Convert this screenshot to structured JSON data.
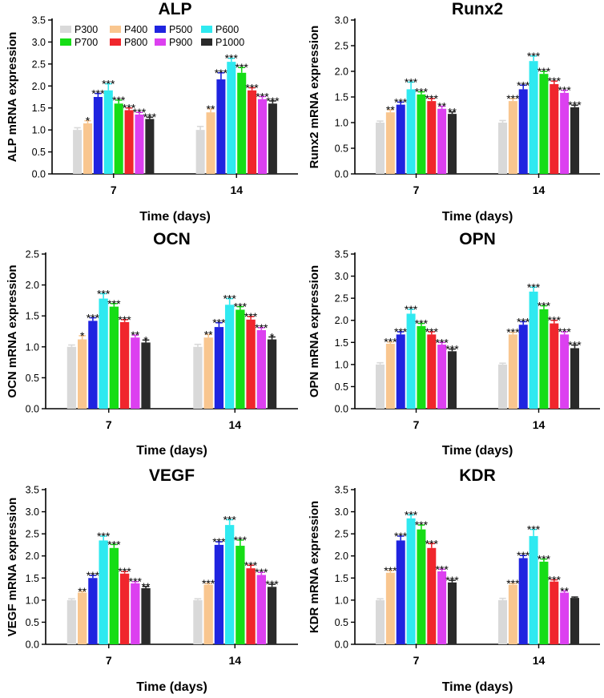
{
  "legend": [
    {
      "label": "P300",
      "color": "#d9d9d9"
    },
    {
      "label": "P400",
      "color": "#f9c68f"
    },
    {
      "label": "P500",
      "color": "#1f24e0"
    },
    {
      "label": "P600",
      "color": "#2fe9f0"
    },
    {
      "label": "P700",
      "color": "#16dd16"
    },
    {
      "label": "P800",
      "color": "#f0262c"
    },
    {
      "label": "P900",
      "color": "#dc40f0"
    },
    {
      "label": "P1000",
      "color": "#2a2a2a"
    }
  ],
  "chart_data": [
    {
      "type": "bar",
      "title": "ALP",
      "ylabel": "ALP mRNA expression",
      "xlabel": "Time (days)",
      "categories": [
        "7",
        "14"
      ],
      "ylim": [
        0,
        3.5
      ],
      "yticks": [
        "0.0",
        "0.5",
        "1.0",
        "1.5",
        "2.0",
        "2.5",
        "3.0",
        "3.5"
      ],
      "series_names": [
        "P300",
        "P400",
        "P500",
        "P600",
        "P700",
        "P800",
        "P900",
        "P1000"
      ],
      "values": [
        [
          1.0,
          1.15,
          1.75,
          1.9,
          1.6,
          1.45,
          1.35,
          1.25
        ],
        [
          1.0,
          1.4,
          2.15,
          2.55,
          2.3,
          1.9,
          1.7,
          1.6
        ]
      ],
      "errors": [
        [
          0.05,
          0.06,
          0.08,
          0.15,
          0.08,
          0.05,
          0.05,
          0.04
        ],
        [
          0.08,
          0.08,
          0.15,
          0.08,
          0.12,
          0.06,
          0.06,
          0.06
        ]
      ],
      "significance": [
        [
          "",
          "*",
          "***",
          "***",
          "***",
          "***",
          "***",
          "***"
        ],
        [
          "",
          "**",
          "***",
          "***",
          "***",
          "***",
          "***",
          "***"
        ]
      ]
    },
    {
      "type": "bar",
      "title": "Runx2",
      "ylabel": "Runx2 mRNA expression",
      "xlabel": "Time (days)",
      "categories": [
        "7",
        "14"
      ],
      "ylim": [
        0,
        3.0
      ],
      "yticks": [
        "0.0",
        "0.5",
        "1.0",
        "1.5",
        "2.0",
        "2.5",
        "3.0"
      ],
      "series_names": [
        "P300",
        "P400",
        "P500",
        "P600",
        "P700",
        "P800",
        "P900",
        "P1000"
      ],
      "values": [
        [
          1.0,
          1.2,
          1.35,
          1.65,
          1.55,
          1.42,
          1.27,
          1.17
        ],
        [
          1.0,
          1.42,
          1.65,
          2.2,
          1.95,
          1.75,
          1.58,
          1.3
        ]
      ],
      "errors": [
        [
          0.03,
          0.05,
          0.05,
          0.14,
          0.05,
          0.05,
          0.05,
          0.04
        ],
        [
          0.04,
          0.05,
          0.08,
          0.1,
          0.05,
          0.06,
          0.05,
          0.04
        ]
      ],
      "significance": [
        [
          "",
          "**",
          "***",
          "***",
          "***",
          "***",
          "**",
          "**"
        ],
        [
          "",
          "***",
          "***",
          "***",
          "***",
          "***",
          "***",
          "***"
        ]
      ]
    },
    {
      "type": "bar",
      "title": "OCN",
      "ylabel": "OCN mRNA expression",
      "xlabel": "Time (days)",
      "categories": [
        "7",
        "14"
      ],
      "ylim": [
        0,
        2.5
      ],
      "yticks": [
        "0.0",
        "0.5",
        "1.0",
        "1.5",
        "2.0",
        "2.5"
      ],
      "series_names": [
        "P300",
        "P400",
        "P500",
        "P600",
        "P700",
        "P800",
        "P900",
        "P1000"
      ],
      "values": [
        [
          1.0,
          1.12,
          1.42,
          1.78,
          1.65,
          1.4,
          1.15,
          1.07
        ],
        [
          1.0,
          1.15,
          1.32,
          1.68,
          1.6,
          1.44,
          1.27,
          1.12
        ]
      ],
      "errors": [
        [
          0.03,
          0.06,
          0.05,
          0.08,
          0.05,
          0.04,
          0.04,
          0.04
        ],
        [
          0.04,
          0.05,
          0.07,
          0.1,
          0.05,
          0.05,
          0.04,
          0.04
        ]
      ],
      "significance": [
        [
          "",
          "*",
          "***",
          "***",
          "***",
          "***",
          "**",
          "*"
        ],
        [
          "",
          "**",
          "***",
          "***",
          "***",
          "***",
          "***",
          "*"
        ]
      ]
    },
    {
      "type": "bar",
      "title": "OPN",
      "ylabel": "OPN mRNA expression",
      "xlabel": "Time (days)",
      "categories": [
        "7",
        "14"
      ],
      "ylim": [
        0,
        3.5
      ],
      "yticks": [
        "0.0",
        "0.5",
        "1.0",
        "1.5",
        "2.0",
        "2.5",
        "3.0",
        "3.5"
      ],
      "series_names": [
        "P300",
        "P400",
        "P500",
        "P600",
        "P700",
        "P800",
        "P900",
        "P1000"
      ],
      "values": [
        [
          1.0,
          1.47,
          1.68,
          2.15,
          1.87,
          1.68,
          1.45,
          1.3
        ],
        [
          1.0,
          1.68,
          1.9,
          2.65,
          2.25,
          1.93,
          1.68,
          1.37
        ]
      ],
      "errors": [
        [
          0.04,
          0.04,
          0.06,
          0.1,
          0.06,
          0.06,
          0.05,
          0.05
        ],
        [
          0.03,
          0.05,
          0.07,
          0.1,
          0.08,
          0.07,
          0.06,
          0.07
        ]
      ],
      "significance": [
        [
          "",
          "***",
          "***",
          "***",
          "***",
          "***",
          "***",
          "***"
        ],
        [
          "",
          "***",
          "***",
          "***",
          "***",
          "***",
          "***",
          "***"
        ]
      ]
    },
    {
      "type": "bar",
      "title": "VEGF",
      "ylabel": "VEGF mRNA expression",
      "xlabel": "Time (days)",
      "categories": [
        "7",
        "14"
      ],
      "ylim": [
        0,
        3.5
      ],
      "yticks": [
        "0.0",
        "0.5",
        "1.0",
        "1.5",
        "2.0",
        "2.5",
        "3.0",
        "3.5"
      ],
      "series_names": [
        "P300",
        "P400",
        "P500",
        "P600",
        "P700",
        "P800",
        "P900",
        "P1000"
      ],
      "values": [
        [
          1.0,
          1.17,
          1.5,
          2.35,
          2.18,
          1.6,
          1.38,
          1.27
        ],
        [
          1.0,
          1.35,
          2.25,
          2.7,
          2.23,
          1.72,
          1.57,
          1.3
        ]
      ],
      "errors": [
        [
          0.03,
          0.03,
          0.06,
          0.1,
          0.08,
          0.05,
          0.04,
          0.04
        ],
        [
          0.03,
          0.03,
          0.07,
          0.12,
          0.13,
          0.07,
          0.06,
          0.06
        ]
      ],
      "significance": [
        [
          "",
          "**",
          "***",
          "***",
          "***",
          "***",
          "***",
          "**"
        ],
        [
          "",
          "***",
          "***",
          "***",
          "***",
          "***",
          "***",
          "***"
        ]
      ]
    },
    {
      "type": "bar",
      "title": "KDR",
      "ylabel": "KDR mRNA expression",
      "xlabel": "Time (days)",
      "categories": [
        "7",
        "14"
      ],
      "ylim": [
        0,
        3.5
      ],
      "yticks": [
        "0.0",
        "0.5",
        "1.0",
        "1.5",
        "2.0",
        "2.5",
        "3.0",
        "3.5"
      ],
      "series_names": [
        "P300",
        "P400",
        "P500",
        "P600",
        "P700",
        "P800",
        "P900",
        "P1000"
      ],
      "values": [
        [
          1.0,
          1.62,
          2.35,
          2.85,
          2.6,
          2.18,
          1.65,
          1.4
        ],
        [
          1.0,
          1.35,
          1.95,
          2.45,
          1.87,
          1.42,
          1.17,
          1.05
        ]
      ],
      "errors": [
        [
          0.03,
          0.05,
          0.1,
          0.08,
          0.1,
          0.1,
          0.05,
          0.05
        ],
        [
          0.04,
          0.03,
          0.06,
          0.15,
          0.06,
          0.04,
          0.04,
          0.02
        ]
      ],
      "significance": [
        [
          "",
          "***",
          "***",
          "***",
          "***",
          "***",
          "***",
          "***"
        ],
        [
          "",
          "***",
          "***",
          "***",
          "***",
          "***",
          "**",
          ""
        ]
      ]
    }
  ]
}
